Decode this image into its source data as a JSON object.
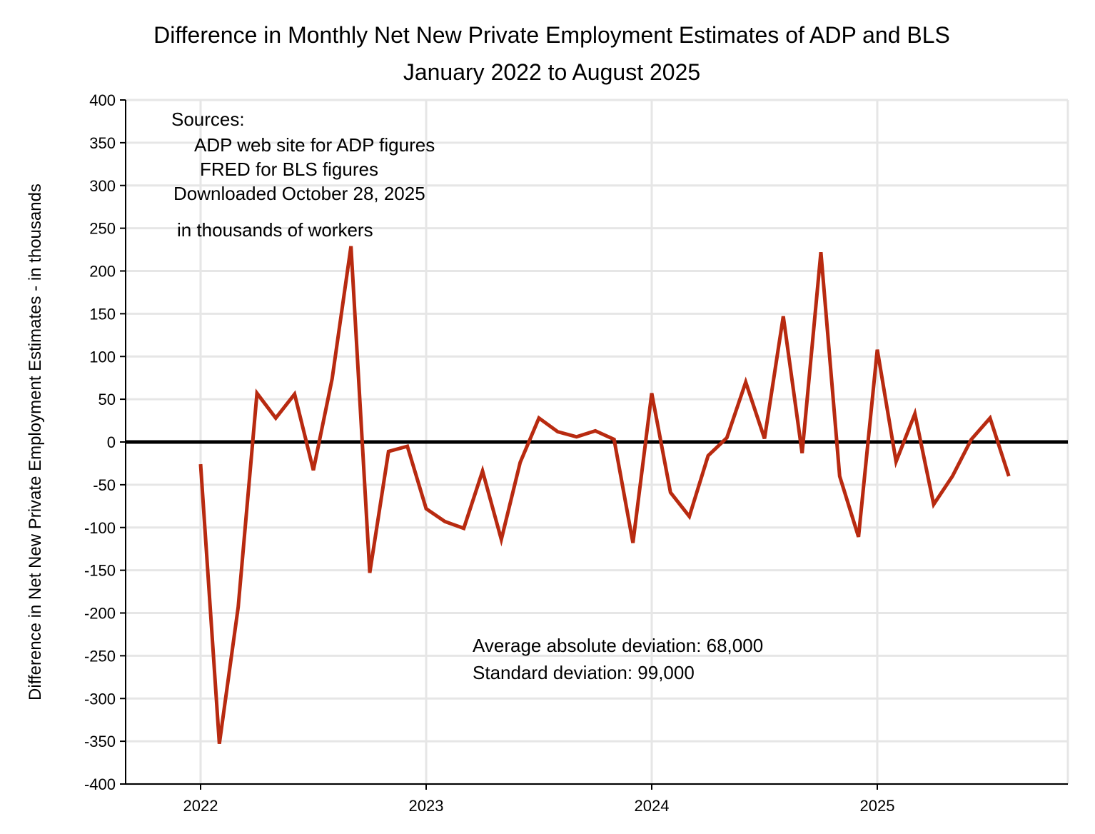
{
  "chart_data": {
    "type": "line",
    "title": "Difference in Monthly Net New Private Employment Estimates of ADP and BLS",
    "subtitle": "January 2022 to August 2025",
    "xlabel": "",
    "ylabel": "Difference in Net New Private Employment Estimates - in thousands",
    "ylim": [
      -400,
      400
    ],
    "yticks": [
      400,
      350,
      300,
      250,
      200,
      150,
      100,
      50,
      0,
      -50,
      -100,
      -150,
      -200,
      -250,
      -300,
      -350,
      -400
    ],
    "xticks": [
      "2022",
      "2023",
      "2024",
      "2025"
    ],
    "grid": true,
    "line_color": "#b82a10",
    "zero_line_color": "#000000",
    "x": [
      "2022-01",
      "2022-02",
      "2022-03",
      "2022-04",
      "2022-05",
      "2022-06",
      "2022-07",
      "2022-08",
      "2022-09",
      "2022-10",
      "2022-11",
      "2022-12",
      "2023-01",
      "2023-02",
      "2023-03",
      "2023-04",
      "2023-05",
      "2023-06",
      "2023-07",
      "2023-08",
      "2023-09",
      "2023-10",
      "2023-11",
      "2023-12",
      "2024-01",
      "2024-02",
      "2024-03",
      "2024-04",
      "2024-05",
      "2024-06",
      "2024-07",
      "2024-08",
      "2024-09",
      "2024-10",
      "2024-11",
      "2024-12",
      "2025-01",
      "2025-02",
      "2025-03",
      "2025-04",
      "2025-05",
      "2025-06",
      "2025-07",
      "2025-08"
    ],
    "values": [
      -26,
      -353,
      -193,
      57,
      28,
      56,
      -33,
      74,
      229,
      -153,
      -11,
      -5,
      -78,
      -93,
      -101,
      -34,
      -114,
      -24,
      28,
      12,
      6,
      13,
      3,
      -118,
      57,
      -59,
      -87,
      -16,
      5,
      70,
      4,
      147,
      -13,
      222,
      -40,
      -111,
      108,
      -23,
      33,
      -73,
      -40,
      3,
      28,
      -40
    ],
    "annotations": {
      "sources": [
        "Sources:",
        "ADP web site for ADP figures",
        "FRED for BLS figures",
        "Downloaded October 28, 2025"
      ],
      "units": "in thousands of workers",
      "avg_abs_dev": "Average absolute deviation:  68,000",
      "std_dev": "Standard deviation:  99,000"
    }
  }
}
